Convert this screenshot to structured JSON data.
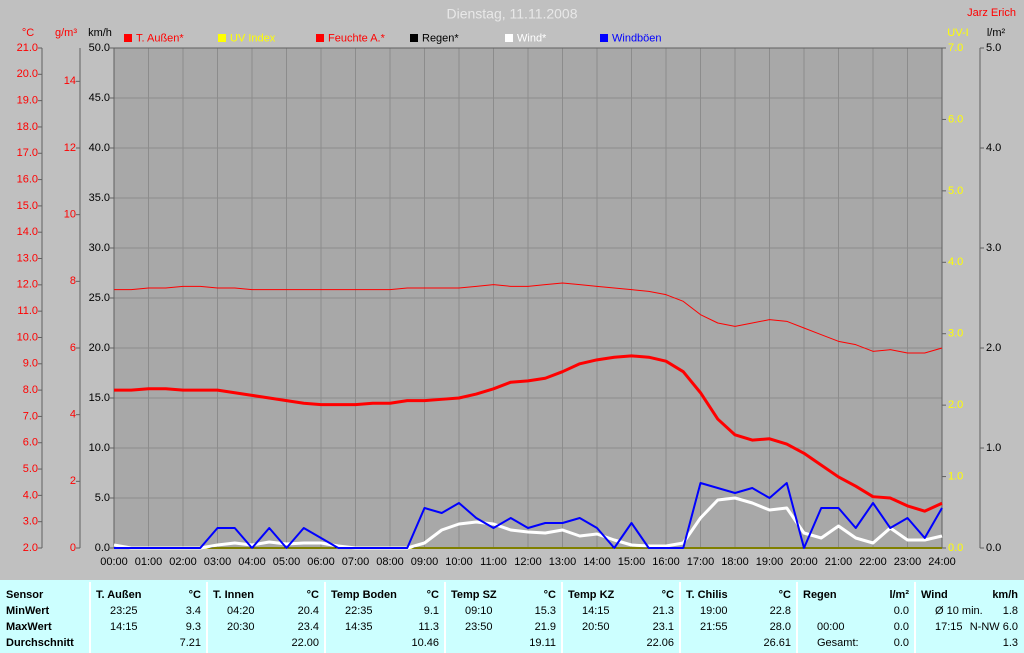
{
  "chart_data": {
    "type": "line",
    "title": "Dienstag, 11.11.2008",
    "author": "Jarz Erich",
    "grid": true,
    "xlim": [
      0,
      24
    ],
    "xticks": [
      {
        "value": 0,
        "label": "00:00"
      },
      {
        "value": 1,
        "label": "01:00"
      },
      {
        "value": 2,
        "label": "02:00"
      },
      {
        "value": 3,
        "label": "03:00"
      },
      {
        "value": 4,
        "label": "04:00"
      },
      {
        "value": 5,
        "label": "05:00"
      },
      {
        "value": 6,
        "label": "06:00"
      },
      {
        "value": 7,
        "label": "07:00"
      },
      {
        "value": 8,
        "label": "08:00"
      },
      {
        "value": 9,
        "label": "09:00"
      },
      {
        "value": 10,
        "label": "10:00"
      },
      {
        "value": 11,
        "label": "11:00"
      },
      {
        "value": 12,
        "label": "12:00"
      },
      {
        "value": 13,
        "label": "13:00"
      },
      {
        "value": 14,
        "label": "14:00"
      },
      {
        "value": 15,
        "label": "15:00"
      },
      {
        "value": 16,
        "label": "16:00"
      },
      {
        "value": 17,
        "label": "17:00"
      },
      {
        "value": 18,
        "label": "18:00"
      },
      {
        "value": 19,
        "label": "19:00"
      },
      {
        "value": 20,
        "label": "20:00"
      },
      {
        "value": 21,
        "label": "21:00"
      },
      {
        "value": 22,
        "label": "22:00"
      },
      {
        "value": 23,
        "label": "23:00"
      },
      {
        "value": 24,
        "label": "24:00"
      }
    ],
    "axes": [
      {
        "label": "°C",
        "side": "left",
        "color": "#ff0000",
        "lim": [
          2,
          21
        ],
        "ticks": [
          {
            "value": 2,
            "label": "2.0"
          },
          {
            "value": 3,
            "label": "3.0"
          },
          {
            "value": 4,
            "label": "4.0"
          },
          {
            "value": 5,
            "label": "5.0"
          },
          {
            "value": 6,
            "label": "6.0"
          },
          {
            "value": 7,
            "label": "7.0"
          },
          {
            "value": 8,
            "label": "8.0"
          },
          {
            "value": 9,
            "label": "9.0"
          },
          {
            "value": 10,
            "label": "10.0"
          },
          {
            "value": 11,
            "label": "11.0"
          },
          {
            "value": 12,
            "label": "12.0"
          },
          {
            "value": 13,
            "label": "13.0"
          },
          {
            "value": 14,
            "label": "14.0"
          },
          {
            "value": 15,
            "label": "15.0"
          },
          {
            "value": 16,
            "label": "16.0"
          },
          {
            "value": 17,
            "label": "17.0"
          },
          {
            "value": 18,
            "label": "18.0"
          },
          {
            "value": 19,
            "label": "19.0"
          },
          {
            "value": 20,
            "label": "20.0"
          },
          {
            "value": 21,
            "label": "21.0"
          }
        ]
      },
      {
        "label": "g/m³",
        "side": "left",
        "color": "#ff0000",
        "lim": [
          0,
          15
        ],
        "ticks": [
          0,
          2,
          4,
          6,
          8,
          10,
          12,
          14
        ]
      },
      {
        "label": "km/h",
        "side": "left",
        "color": "#000000",
        "lim": [
          0,
          50
        ],
        "ticks": [
          {
            "value": 0,
            "label": "0.0"
          },
          {
            "value": 5,
            "label": "5.0"
          },
          {
            "value": 10,
            "label": "10.0"
          },
          {
            "value": 15,
            "label": "15.0"
          },
          {
            "value": 20,
            "label": "20.0"
          },
          {
            "value": 25,
            "label": "25.0"
          },
          {
            "value": 30,
            "label": "30.0"
          },
          {
            "value": 35,
            "label": "35.0"
          },
          {
            "value": 40,
            "label": "40.0"
          },
          {
            "value": 45,
            "label": "45.0"
          },
          {
            "value": 50,
            "label": "50.0"
          }
        ]
      },
      {
        "label": "UV-I",
        "side": "right",
        "color": "#ffff00",
        "lim": [
          0,
          7
        ],
        "ticks": [
          {
            "value": 0,
            "label": "0.0"
          },
          {
            "value": 1,
            "label": "1.0"
          },
          {
            "value": 2,
            "label": "2.0"
          },
          {
            "value": 3,
            "label": "3.0"
          },
          {
            "value": 4,
            "label": "4.0"
          },
          {
            "value": 5,
            "label": "5.0"
          },
          {
            "value": 6,
            "label": "6.0"
          },
          {
            "value": 7,
            "label": "7.0"
          }
        ]
      },
      {
        "label": "l/m²",
        "side": "right",
        "color": "#000000",
        "lim": [
          0,
          5
        ],
        "ticks": [
          {
            "value": 0,
            "label": "0.0"
          },
          {
            "value": 1,
            "label": "1.0"
          },
          {
            "value": 2,
            "label": "2.0"
          },
          {
            "value": 3,
            "label": "3.0"
          },
          {
            "value": 4,
            "label": "4.0"
          },
          {
            "value": 5,
            "label": "5.0"
          }
        ]
      }
    ],
    "x": [
      0,
      0.5,
      1,
      1.5,
      2,
      2.5,
      3,
      3.5,
      4,
      4.5,
      5,
      5.5,
      6,
      6.5,
      7,
      7.5,
      8,
      8.5,
      9,
      9.5,
      10,
      10.5,
      11,
      11.5,
      12,
      12.5,
      13,
      13.5,
      14,
      14.5,
      15,
      15.5,
      16,
      16.5,
      17,
      17.5,
      18,
      18.5,
      19,
      19.5,
      20,
      20.5,
      21,
      21.5,
      22,
      22.5,
      23,
      23.5,
      24
    ],
    "series": [
      {
        "name": "T. Außen*",
        "color": "#ff0000",
        "axis": 0,
        "width": 3,
        "values": [
          8.0,
          8.0,
          8.05,
          8.05,
          8.0,
          8.0,
          8.0,
          7.9,
          7.8,
          7.7,
          7.6,
          7.5,
          7.45,
          7.45,
          7.45,
          7.5,
          7.5,
          7.6,
          7.6,
          7.65,
          7.7,
          7.85,
          8.05,
          8.3,
          8.35,
          8.45,
          8.7,
          9.0,
          9.15,
          9.25,
          9.3,
          9.25,
          9.1,
          8.7,
          7.9,
          6.9,
          6.3,
          6.1,
          6.15,
          5.95,
          5.6,
          5.15,
          4.7,
          4.35,
          3.95,
          3.9,
          3.6,
          3.4,
          3.7
        ]
      },
      {
        "name": "UV Index",
        "color": "#ffff00",
        "axis": 3,
        "width": 2,
        "values": [
          0,
          0,
          0,
          0,
          0,
          0,
          0,
          0,
          0,
          0,
          0,
          0,
          0,
          0,
          0,
          0,
          0,
          0,
          0,
          0,
          0,
          0,
          0,
          0,
          0,
          0,
          0,
          0,
          0,
          0,
          0,
          0,
          0,
          0,
          0,
          0,
          0,
          0,
          0,
          0,
          0,
          0,
          0,
          0,
          0,
          0,
          0,
          0,
          0
        ]
      },
      {
        "name": "Feuchte A.*",
        "color": "#ff0000",
        "axis": 1,
        "width": 1,
        "values": [
          7.75,
          7.75,
          7.8,
          7.8,
          7.85,
          7.85,
          7.8,
          7.8,
          7.75,
          7.75,
          7.75,
          7.75,
          7.75,
          7.75,
          7.75,
          7.75,
          7.75,
          7.8,
          7.8,
          7.8,
          7.8,
          7.85,
          7.9,
          7.85,
          7.85,
          7.9,
          7.95,
          7.9,
          7.85,
          7.8,
          7.75,
          7.7,
          7.6,
          7.4,
          7.0,
          6.75,
          6.65,
          6.75,
          6.85,
          6.8,
          6.6,
          6.4,
          6.2,
          6.1,
          5.9,
          5.95,
          5.85,
          5.85,
          6.0
        ]
      },
      {
        "name": "Regen*",
        "color": "#000000",
        "axis": 4,
        "width": 1,
        "values": [
          0,
          0,
          0,
          0,
          0,
          0,
          0,
          0,
          0,
          0,
          0,
          0,
          0,
          0,
          0,
          0,
          0,
          0,
          0,
          0,
          0,
          0,
          0,
          0,
          0,
          0,
          0,
          0,
          0,
          0,
          0,
          0,
          0,
          0,
          0,
          0,
          0,
          0,
          0,
          0,
          0,
          0,
          0,
          0,
          0,
          0,
          0,
          0,
          0
        ]
      },
      {
        "name": "Wind*",
        "color": "#ffffff",
        "axis": 2,
        "width": 3,
        "values": [
          0.3,
          0,
          0,
          0,
          0,
          0,
          0.3,
          0.5,
          0.3,
          0.6,
          0.4,
          0.5,
          0.5,
          0.2,
          0,
          0,
          0,
          0,
          0.5,
          1.8,
          2.4,
          2.6,
          2.4,
          1.8,
          1.6,
          1.5,
          1.8,
          1.2,
          1.4,
          0.8,
          0.3,
          0.2,
          0.2,
          0.5,
          3.0,
          4.8,
          5.0,
          4.5,
          3.8,
          4.0,
          1.5,
          1.0,
          2.2,
          1.0,
          0.5,
          2.0,
          0.8,
          0.8,
          1.2
        ]
      },
      {
        "name": "Windböen",
        "color": "#0000ff",
        "axis": 2,
        "width": 2,
        "values": [
          0,
          0,
          0,
          0,
          0,
          0,
          2.0,
          2.0,
          0,
          2.0,
          0,
          2.0,
          1.0,
          0,
          0,
          0,
          0,
          0,
          4.0,
          3.5,
          4.5,
          3.0,
          2.0,
          3.0,
          2.0,
          2.5,
          2.5,
          3.0,
          2.0,
          0,
          2.5,
          0,
          0,
          0,
          6.5,
          6.0,
          5.5,
          6.0,
          5.0,
          6.5,
          0,
          4.0,
          4.0,
          2.0,
          4.5,
          2.0,
          3.0,
          1.0,
          4.0
        ]
      }
    ]
  },
  "table": {
    "row_labels": [
      "Sensor",
      "MinWert",
      "MaxWert",
      "Durchschnitt"
    ],
    "columns": [
      {
        "header": "T. Außen",
        "unit": "°C",
        "rows": [
          [
            "23:25",
            "3.4"
          ],
          [
            "14:15",
            "9.3"
          ],
          [
            "7.21"
          ]
        ]
      },
      {
        "header": "T. Innen",
        "unit": "°C",
        "rows": [
          [
            "04:20",
            "20.4"
          ],
          [
            "20:30",
            "23.4"
          ],
          [
            "22.00"
          ]
        ]
      },
      {
        "header": "Temp Boden",
        "unit": "°C",
        "rows": [
          [
            "22:35",
            "9.1"
          ],
          [
            "14:35",
            "11.3"
          ],
          [
            "10.46"
          ]
        ]
      },
      {
        "header": "Temp SZ",
        "unit": "°C",
        "rows": [
          [
            "09:10",
            "15.3"
          ],
          [
            "23:50",
            "21.9"
          ],
          [
            "19.11"
          ]
        ]
      },
      {
        "header": "Temp KZ",
        "unit": "°C",
        "rows": [
          [
            "14:15",
            "21.3"
          ],
          [
            "20:50",
            "23.1"
          ],
          [
            "22.06"
          ]
        ]
      },
      {
        "header": "T. Chilis",
        "unit": "°C",
        "rows": [
          [
            "19:00",
            "22.8"
          ],
          [
            "21:55",
            "28.0"
          ],
          [
            "26.61"
          ]
        ]
      },
      {
        "header": "Regen",
        "unit": "l/m²",
        "rows": [
          [
            "0.0"
          ],
          [
            "00:00",
            "0.0"
          ],
          [
            "Gesamt:",
            "0.0"
          ]
        ]
      },
      {
        "header": "Wind",
        "unit": "km/h",
        "rows": [
          [
            "Ø 10 min.",
            "1.8"
          ],
          [
            "17:15",
            "N-NW 6.0"
          ],
          [
            "1.3"
          ]
        ]
      }
    ]
  }
}
